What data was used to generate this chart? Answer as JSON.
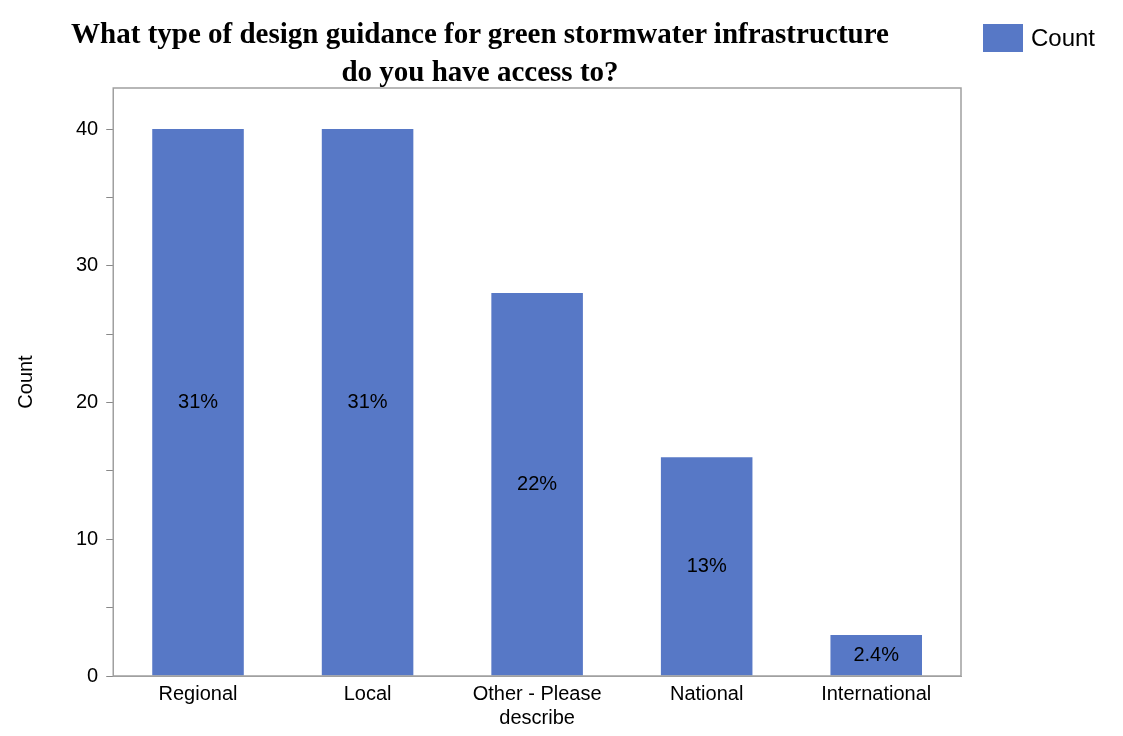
{
  "chart_data": {
    "type": "bar",
    "title": "What type of design guidance for green stormwater infrastructure do you have access to?",
    "ylabel": "Count",
    "categories": [
      "Regional",
      "Local",
      "Other - Please describe",
      "National",
      "International"
    ],
    "series": [
      {
        "name": "Count",
        "color": "#5778c6",
        "values": [
          40,
          40,
          28,
          16,
          3
        ]
      }
    ],
    "annotations": [
      "31%",
      "31%",
      "22%",
      "13%",
      "2.4%"
    ],
    "ylim": [
      0,
      43
    ],
    "yticks": [
      0,
      {
        "value": 5,
        "label": null
      },
      10,
      {
        "value": 15,
        "label": null
      },
      20,
      {
        "value": 25,
        "label": null
      },
      30,
      {
        "value": 35,
        "label": null
      },
      40
    ],
    "grid": false,
    "legend": "top right"
  }
}
